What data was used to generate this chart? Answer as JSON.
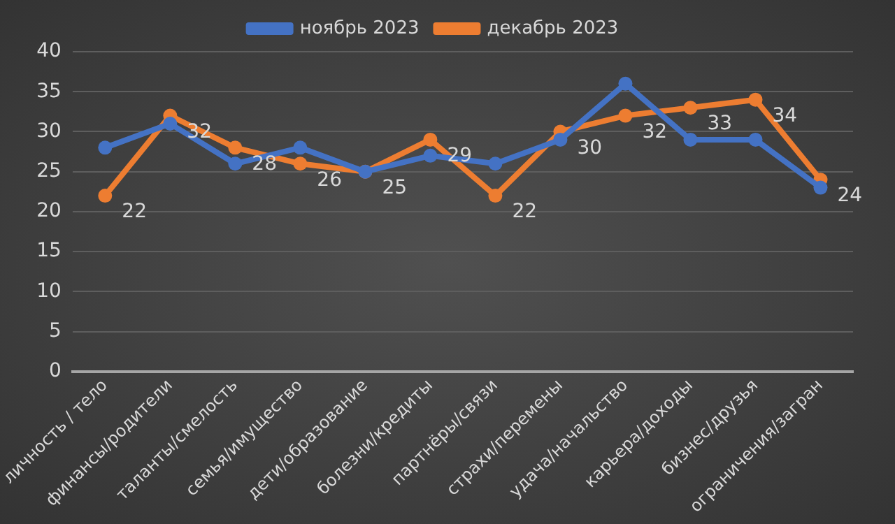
{
  "chart_data": {
    "type": "line",
    "categories": [
      "личность / тело",
      "финансы/родители",
      "таланты/смелость",
      "семья/имущество",
      "дети/образование",
      "болезни/кредиты",
      "партнёры/связи",
      "страхи/перемены",
      "удача/начальство",
      "карьера/доходы",
      "бизнес/друзья",
      "ограничения/загран"
    ],
    "series": [
      {
        "name": "ноябрь 2023",
        "color": "#4472c4",
        "values": [
          28,
          31,
          26,
          28,
          25,
          27,
          26,
          29,
          36,
          29,
          29,
          23
        ]
      },
      {
        "name": "декабрь 2023",
        "color": "#ed7d31",
        "values": [
          22,
          32,
          28,
          26,
          25,
          29,
          22,
          30,
          32,
          33,
          34,
          24
        ],
        "value_labels": [
          "22",
          "32",
          "28",
          "26",
          "25",
          "29",
          "22",
          "30",
          "32",
          "33",
          "34",
          "24"
        ]
      }
    ],
    "ylim": [
      0,
      40
    ],
    "yticks": [
      0,
      5,
      10,
      15,
      20,
      25,
      30,
      35,
      40
    ],
    "grid": "y",
    "legend": "top",
    "marker": "circle",
    "line_style": "solid"
  }
}
